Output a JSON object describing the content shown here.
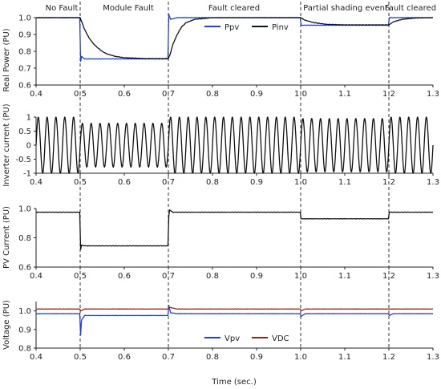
{
  "chart_data": [
    {
      "id": "real_power",
      "type": "line",
      "ylabel": "Real Power  (PU)",
      "xlim": [
        0.4,
        1.3
      ],
      "ylim": [
        0.6,
        1.0
      ],
      "yticks": [
        "0.6",
        "0.7",
        "0.8",
        "0.9",
        "1.0"
      ],
      "xticks": [
        "0.4",
        "0.5",
        "0.6",
        "0.7",
        "0.8",
        "0.9",
        "1.0",
        "1.1",
        "1.2",
        "1.3"
      ],
      "legend": "top-right",
      "series": [
        {
          "name": "Ppv",
          "color": "#1f3fd6",
          "points": [
            [
              0.4,
              1.0
            ],
            [
              0.499,
              1.0
            ],
            [
              0.501,
              0.74
            ],
            [
              0.503,
              0.77
            ],
            [
              0.51,
              0.755
            ],
            [
              0.699,
              0.755
            ],
            [
              0.701,
              1.02
            ],
            [
              0.705,
              0.99
            ],
            [
              0.72,
              1.0
            ],
            [
              0.999,
              1.0
            ],
            [
              1.001,
              0.955
            ],
            [
              1.199,
              0.955
            ],
            [
              1.201,
              1.0
            ],
            [
              1.3,
              1.0
            ]
          ]
        },
        {
          "name": "Pinv",
          "color": "#111111",
          "points": [
            [
              0.4,
              1.0
            ],
            [
              0.5,
              1.0
            ],
            [
              0.51,
              0.93
            ],
            [
              0.52,
              0.88
            ],
            [
              0.53,
              0.845
            ],
            [
              0.54,
              0.82
            ],
            [
              0.55,
              0.8
            ],
            [
              0.56,
              0.785
            ],
            [
              0.58,
              0.77
            ],
            [
              0.6,
              0.762
            ],
            [
              0.65,
              0.757
            ],
            [
              0.7,
              0.757
            ],
            [
              0.705,
              0.79
            ],
            [
              0.71,
              0.84
            ],
            [
              0.72,
              0.9
            ],
            [
              0.73,
              0.945
            ],
            [
              0.74,
              0.97
            ],
            [
              0.76,
              0.99
            ],
            [
              0.8,
              1.0
            ],
            [
              1.0,
              1.0
            ],
            [
              1.01,
              0.985
            ],
            [
              1.03,
              0.97
            ],
            [
              1.06,
              0.96
            ],
            [
              1.1,
              0.957
            ],
            [
              1.2,
              0.957
            ],
            [
              1.21,
              0.975
            ],
            [
              1.23,
              0.99
            ],
            [
              1.26,
              0.998
            ],
            [
              1.3,
              1.0
            ]
          ]
        }
      ]
    },
    {
      "id": "inverter_current",
      "type": "line",
      "ylabel": "Inverter current  (PU)",
      "xlim": [
        0.4,
        1.3
      ],
      "ylim": [
        -1,
        1
      ],
      "yticks": [
        "-1",
        "-0.5",
        "0",
        "0.5",
        "1"
      ],
      "xticks": [
        "0.4",
        "0.5",
        "0.6",
        "0.7",
        "0.8",
        "0.9",
        "1.0",
        "1.1",
        "1.2",
        "1.3"
      ],
      "series": [
        {
          "name": "",
          "color": "#111111",
          "frequency_hz": 50,
          "amplitude_envelope": [
            [
              0.4,
              1.0
            ],
            [
              0.5,
              1.0
            ],
            [
              0.5,
              0.78
            ],
            [
              0.7,
              0.78
            ],
            [
              0.7,
              1.0
            ],
            [
              1.0,
              1.0
            ],
            [
              1.0,
              0.95
            ],
            [
              1.2,
              0.95
            ],
            [
              1.2,
              1.0
            ],
            [
              1.3,
              1.0
            ]
          ]
        }
      ]
    },
    {
      "id": "pv_current",
      "type": "line",
      "ylabel": "PV Current  (PU)",
      "xlim": [
        0.4,
        1.3
      ],
      "ylim": [
        0.6,
        1.0
      ],
      "yticks": [
        "0.6",
        "0.8",
        "1.0"
      ],
      "xticks": [
        "0.4",
        "0.5",
        "0.6",
        "0.7",
        "0.8",
        "0.9",
        "1.0",
        "1.1",
        "1.2",
        "1.3"
      ],
      "series": [
        {
          "name": "",
          "color": "#111111",
          "points": [
            [
              0.4,
              0.975
            ],
            [
              0.499,
              0.975
            ],
            [
              0.501,
              0.72
            ],
            [
              0.503,
              0.75
            ],
            [
              0.51,
              0.745
            ],
            [
              0.699,
              0.745
            ],
            [
              0.701,
              0.95
            ],
            [
              0.703,
              0.99
            ],
            [
              0.71,
              0.975
            ],
            [
              0.999,
              0.975
            ],
            [
              1.001,
              0.93
            ],
            [
              1.199,
              0.93
            ],
            [
              1.201,
              0.975
            ],
            [
              1.3,
              0.975
            ]
          ]
        }
      ]
    },
    {
      "id": "voltage",
      "type": "line",
      "ylabel": "Voltage  (PU)",
      "xlabel": "Time (sec.)",
      "xlim": [
        0.4,
        1.3
      ],
      "ylim": [
        0.8,
        1.05
      ],
      "yticks": [
        "0.8",
        "0.9",
        "1.0"
      ],
      "xticks": [
        "0.4",
        "0.5",
        "0.6",
        "0.7",
        "0.8",
        "0.9",
        "1.0",
        "1.1",
        "1.2",
        "1.3"
      ],
      "legend": "bottom-center",
      "series": [
        {
          "name": "Vpv",
          "color": "#1f3fd6",
          "points": [
            [
              0.4,
              0.985
            ],
            [
              0.499,
              0.985
            ],
            [
              0.501,
              0.87
            ],
            [
              0.503,
              0.95
            ],
            [
              0.51,
              0.975
            ],
            [
              0.699,
              0.975
            ],
            [
              0.701,
              1.03
            ],
            [
              0.705,
              0.99
            ],
            [
              0.72,
              0.985
            ],
            [
              0.999,
              0.985
            ],
            [
              1.001,
              0.97
            ],
            [
              1.01,
              0.985
            ],
            [
              1.199,
              0.985
            ],
            [
              1.201,
              0.975
            ],
            [
              1.21,
              0.985
            ],
            [
              1.3,
              0.985
            ]
          ]
        },
        {
          "name": "VDC",
          "color": "#8b2a1a",
          "points": [
            [
              0.4,
              1.01
            ],
            [
              0.499,
              1.01
            ],
            [
              0.501,
              1.0
            ],
            [
              0.51,
              1.01
            ],
            [
              0.699,
              1.01
            ],
            [
              0.701,
              1.02
            ],
            [
              0.72,
              1.01
            ],
            [
              0.999,
              1.01
            ],
            [
              1.001,
              1.0
            ],
            [
              1.01,
              1.01
            ],
            [
              1.3,
              1.01
            ]
          ]
        }
      ]
    }
  ],
  "regions": [
    {
      "label": "No Fault"
    },
    {
      "label": "Module Fault"
    },
    {
      "label": "Fault cleared"
    },
    {
      "label": "Partial shading event"
    },
    {
      "label": "Fault cleared"
    }
  ],
  "event_times": [
    0.5,
    0.7,
    1.0,
    1.2
  ]
}
